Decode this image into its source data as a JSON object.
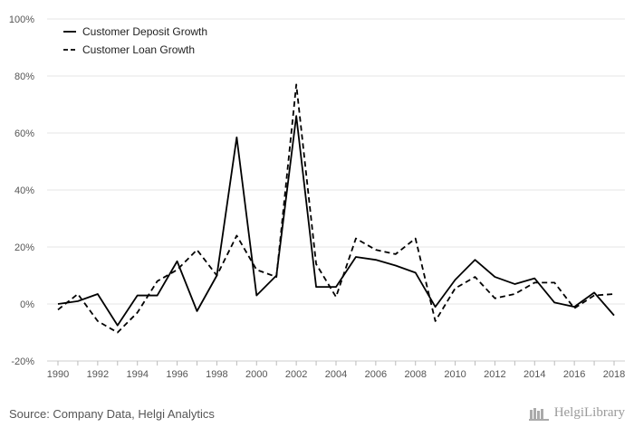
{
  "chart_data": {
    "type": "line",
    "title": "",
    "xlabel": "",
    "ylabel": "",
    "x": [
      1990,
      1991,
      1992,
      1993,
      1994,
      1995,
      1996,
      1997,
      1998,
      1999,
      2000,
      2001,
      2002,
      2003,
      2004,
      2005,
      2006,
      2007,
      2008,
      2009,
      2010,
      2011,
      2012,
      2013,
      2014,
      2015,
      2016,
      2017,
      2018
    ],
    "x_tick_labels": [
      "1990",
      "1992",
      "1994",
      "1996",
      "1998",
      "2000",
      "2002",
      "2004",
      "2006",
      "2008",
      "2010",
      "2012",
      "2014",
      "2016",
      "2018"
    ],
    "y_tick_labels": [
      "100%",
      "80%",
      "60%",
      "40%",
      "20%",
      "0%",
      "-20%"
    ],
    "ylim": [
      -20,
      100
    ],
    "series": [
      {
        "name": "Customer Deposit Growth",
        "dash": "solid",
        "values": [
          0,
          1,
          3.5,
          -7.5,
          3,
          3,
          15,
          -2.5,
          10,
          58.5,
          3,
          10,
          66,
          6,
          6,
          16.5,
          15.5,
          13.5,
          11,
          -1,
          8.5,
          15.5,
          9.5,
          7,
          9,
          0.5,
          -1,
          4,
          -4
        ]
      },
      {
        "name": "Customer Loan Growth",
        "dash": "dashed",
        "values": [
          -2,
          3.5,
          -6,
          -10,
          -3,
          8,
          12,
          19,
          10,
          24,
          12,
          9.5,
          77,
          14,
          2.5,
          23,
          19,
          17.5,
          23,
          -6,
          5.5,
          9.5,
          2,
          3.5,
          7.5,
          7.5,
          -1.5,
          3,
          3.5
        ]
      }
    ],
    "grid": true,
    "legend": "top-left"
  },
  "footer": {
    "source": "Source: Company Data, Helgi Analytics",
    "logo_text": "HelgiLibrary"
  }
}
